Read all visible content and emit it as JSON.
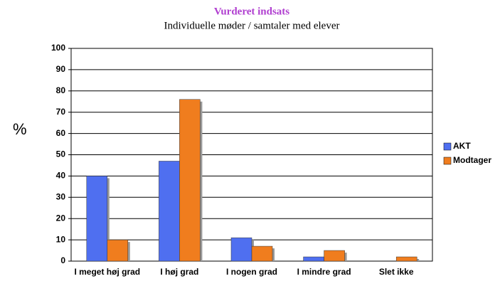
{
  "chart_data": {
    "type": "bar",
    "title": "Vurderet indsats",
    "subtitle": "Individuelle møder / samtaler med elever",
    "ylabel": "%",
    "categories": [
      "I meget høj grad",
      "I høj grad",
      "I nogen grad",
      "I mindre grad",
      "Slet ikke"
    ],
    "series": [
      {
        "name": "AKT",
        "color": "#4f6ff0",
        "values": [
          40,
          47,
          11,
          2,
          0
        ]
      },
      {
        "name": "Modtager",
        "color": "#f07d1e",
        "values": [
          10,
          76,
          7,
          5,
          2
        ]
      }
    ],
    "ylim": [
      0,
      100
    ],
    "yticks": [
      0,
      10,
      20,
      30,
      40,
      50,
      60,
      70,
      80,
      90,
      100
    ],
    "grid": true,
    "legend": "right"
  }
}
